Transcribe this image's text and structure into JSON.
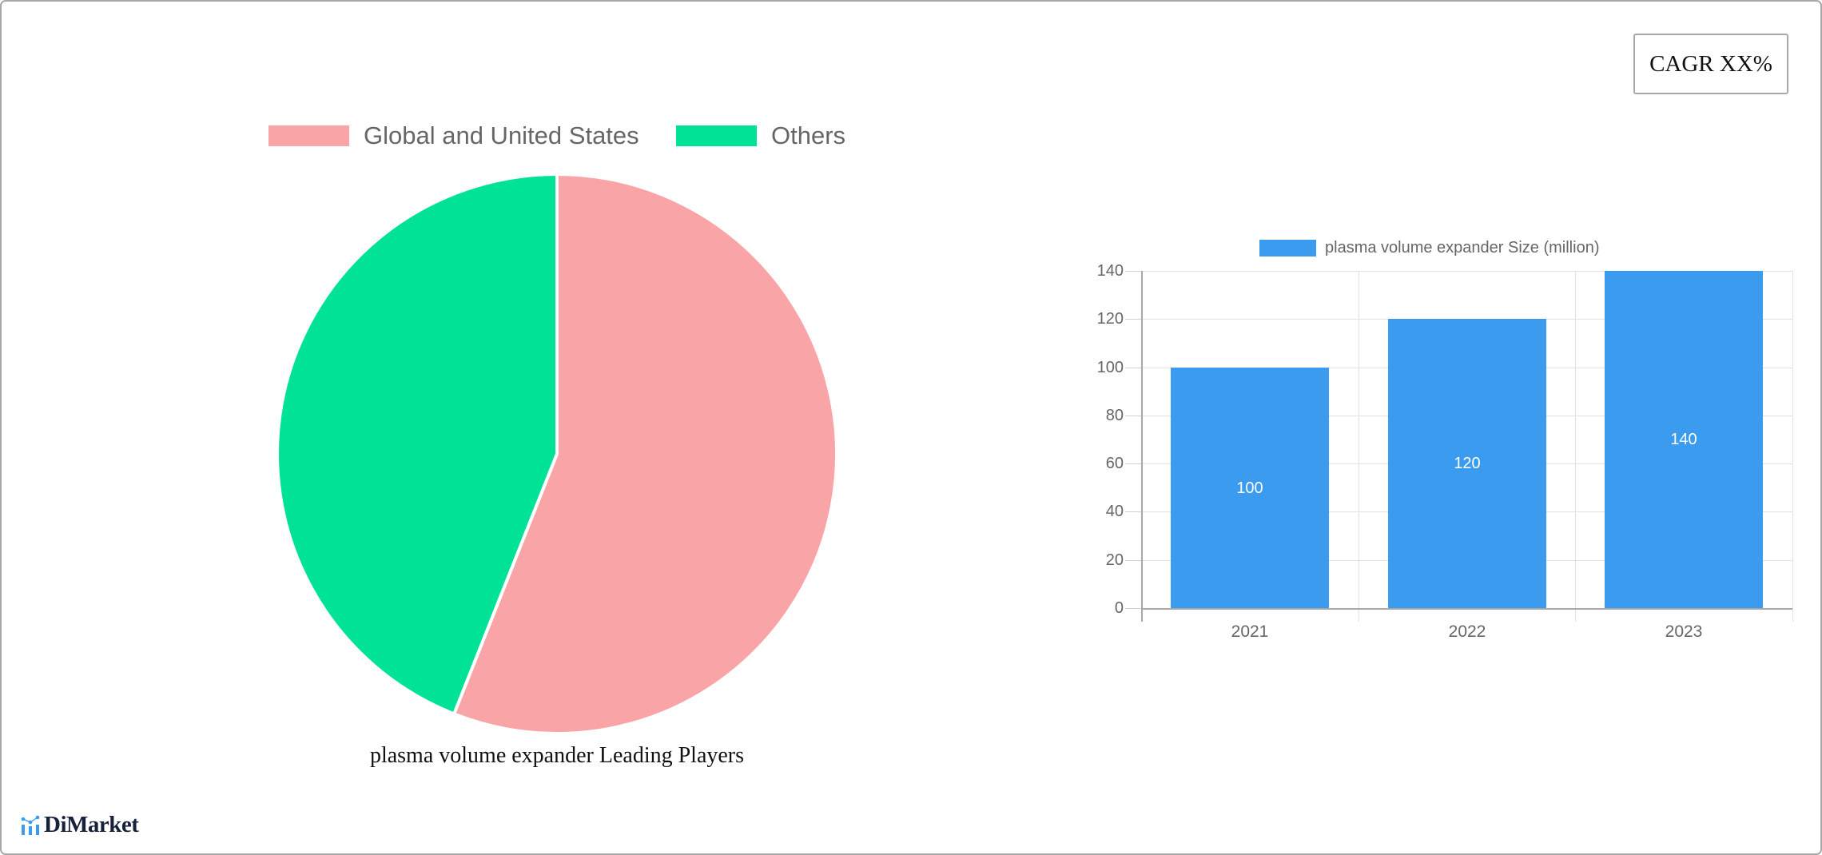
{
  "cagr_badge": {
    "label": "CAGR XX%"
  },
  "pie_chart": {
    "legend": [
      {
        "label": "Global and United States",
        "color": "#f9a4a6"
      },
      {
        "label": "Others",
        "color": "#00e396"
      }
    ],
    "caption": "plasma volume expander Leading Players"
  },
  "bar_chart": {
    "legend_label": "plasma volume expander Size (million)",
    "legend_color": "#3a9bef"
  },
  "logo": {
    "text": "DiMarket",
    "icon": "bar-chart-logo-icon"
  },
  "chart_data": [
    {
      "type": "pie",
      "title": "plasma volume expander Leading Players",
      "categories": [
        "Global and United States",
        "Others"
      ],
      "values": [
        56,
        44
      ],
      "colors": [
        "#f9a4a6",
        "#00e396"
      ],
      "legend_position": "top"
    },
    {
      "type": "bar",
      "title": "",
      "categories": [
        "2021",
        "2022",
        "2023"
      ],
      "series": [
        {
          "name": "plasma volume expander Size (million)",
          "values": [
            100,
            120,
            140
          ],
          "color": "#3a9bef"
        }
      ],
      "xlabel": "",
      "ylabel": "",
      "ylim": [
        0,
        140
      ],
      "yticks": [
        0,
        20,
        40,
        60,
        80,
        100,
        120,
        140
      ],
      "grid": true,
      "data_labels": true,
      "legend_position": "top"
    }
  ]
}
